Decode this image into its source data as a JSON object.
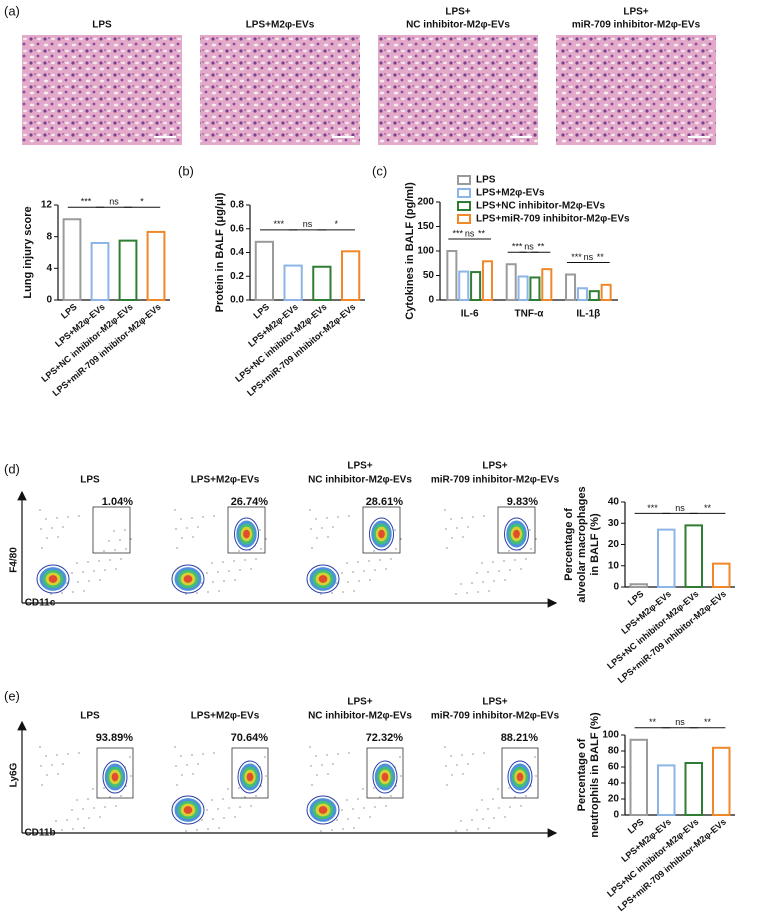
{
  "figure": {
    "panel_labels": [
      "(a)",
      "(b)",
      "(c)",
      "(d)",
      "(e)"
    ],
    "histology_titles": [
      [
        "LPS"
      ],
      [
        "LPS+M2φ-EVs"
      ],
      [
        "LPS+",
        "NC inhibitor-M2φ-EVs"
      ],
      [
        "LPS+",
        "miR-709 inhibitor-M2φ-EVs"
      ]
    ],
    "flow_d": {
      "titles": [
        [
          "LPS"
        ],
        [
          "LPS+M2φ-EVs"
        ],
        [
          "LPS+",
          "NC inhibitor-M2φ-EVs"
        ],
        [
          "LPS+",
          "miR-709 inhibitor-M2φ-EVs"
        ]
      ],
      "percentages": [
        "1.04%",
        "26.74%",
        "28.61%",
        "9.83%"
      ],
      "y_label": "F4/80",
      "x_label": "CD11c"
    },
    "flow_e": {
      "titles": [
        [
          "LPS"
        ],
        [
          "LPS+M2φ-EVs"
        ],
        [
          "LPS+",
          "NC inhibitor-M2φ-EVs"
        ],
        [
          "LPS+",
          "miR-709 inhibitor-M2φ-EVs"
        ]
      ],
      "percentages": [
        "93.89%",
        "70.64%",
        "72.32%",
        "88.21%"
      ],
      "y_label": "Ly6G",
      "x_label": "CD11b"
    }
  },
  "chart_data": [
    {
      "type": "bar",
      "ylabel": [
        "Lung injury score"
      ],
      "categories": [
        "LPS",
        "LPS+M2φ-EVs",
        "LPS+NC inhibitor-M2φ-EVs",
        "LPS+miR-709 inhibitor-M2φ-EVs"
      ],
      "values": [
        10.2,
        7.2,
        7.5,
        8.6
      ],
      "colors": [
        "#9a9a9a",
        "#8cb4e6",
        "#2e7d32",
        "#f0882a"
      ],
      "ylim": [
        0,
        12
      ],
      "yticks": [
        0,
        4,
        8,
        12
      ],
      "significance": [
        "***",
        "ns",
        "*"
      ]
    },
    {
      "type": "bar",
      "ylabel": [
        "Protein in BALF (μg/μl)"
      ],
      "categories": [
        "LPS",
        "LPS+M2φ-EVs",
        "LPS+NC inhibitor-M2φ-EVs",
        "LPS+miR-709 inhibitor-M2φ-EVs"
      ],
      "values": [
        0.49,
        0.29,
        0.28,
        0.41
      ],
      "colors": [
        "#9a9a9a",
        "#8cb4e6",
        "#2e7d32",
        "#f0882a"
      ],
      "ylim": [
        0,
        0.8
      ],
      "yticks": [
        {
          "value": 0,
          "label": "0.0"
        },
        0.2,
        0.4,
        0.6,
        0.8
      ],
      "significance": [
        "***",
        "ns",
        "*"
      ]
    },
    {
      "type": "grouped_bar",
      "ylabel": [
        "Cytokines in BALF (pg/ml)"
      ],
      "categories": [
        "IL-6",
        "TNF-α",
        "IL-1β"
      ],
      "series": [
        {
          "name": "LPS",
          "color": "#9a9a9a",
          "values": [
            100,
            73,
            52
          ]
        },
        {
          "name": "LPS+M2φ-EVs",
          "color": "#8cb4e6",
          "values": [
            58,
            48,
            24
          ]
        },
        {
          "name": "LPS+NC inhibitor-M2φ-EVs",
          "color": "#2e7d32",
          "values": [
            57,
            46,
            18
          ]
        },
        {
          "name": "LPS+miR-709 inhibitor-M2φ-EVs",
          "color": "#f0882a",
          "values": [
            79,
            63,
            31
          ]
        }
      ],
      "ylim": [
        0,
        200
      ],
      "yticks": [
        0,
        50,
        100,
        150,
        200
      ],
      "legend": "top",
      "significance": [
        [
          "***",
          "ns",
          "**"
        ],
        [
          "***",
          "ns",
          "**"
        ],
        [
          "***",
          "ns",
          "**"
        ]
      ]
    },
    {
      "type": "bar",
      "ylabel": [
        "Percentage of",
        "alveolar macrophages",
        "in BALF (%)"
      ],
      "categories": [
        "LPS",
        "LPS+M2φ-EVs",
        "LPS+NC inhibitor-M2φ-EVs",
        "LPS+miR-709 inhibitor-M2φ-EVs"
      ],
      "values": [
        1.3,
        27,
        29,
        11
      ],
      "colors": [
        "#9a9a9a",
        "#8cb4e6",
        "#2e7d32",
        "#f0882a"
      ],
      "ylim": [
        0,
        40
      ],
      "yticks": [
        0,
        10,
        20,
        30,
        40
      ],
      "significance": [
        "***",
        "ns",
        "**"
      ]
    },
    {
      "type": "bar",
      "ylabel": [
        "Percentage of",
        "neutrophils in BALF (%)"
      ],
      "categories": [
        "LPS",
        "LPS+M2φ-EVs",
        "LPS+NC inhibitor-M2φ-EVs",
        "LPS+miR-709 inhibitor-M2φ-EVs"
      ],
      "values": [
        94,
        62,
        65,
        84
      ],
      "colors": [
        "#9a9a9a",
        "#8cb4e6",
        "#2e7d32",
        "#f0882a"
      ],
      "ylim": [
        0,
        100
      ],
      "yticks": [
        0,
        20,
        40,
        60,
        80,
        100
      ],
      "significance": [
        "**",
        "ns",
        "**"
      ]
    }
  ]
}
